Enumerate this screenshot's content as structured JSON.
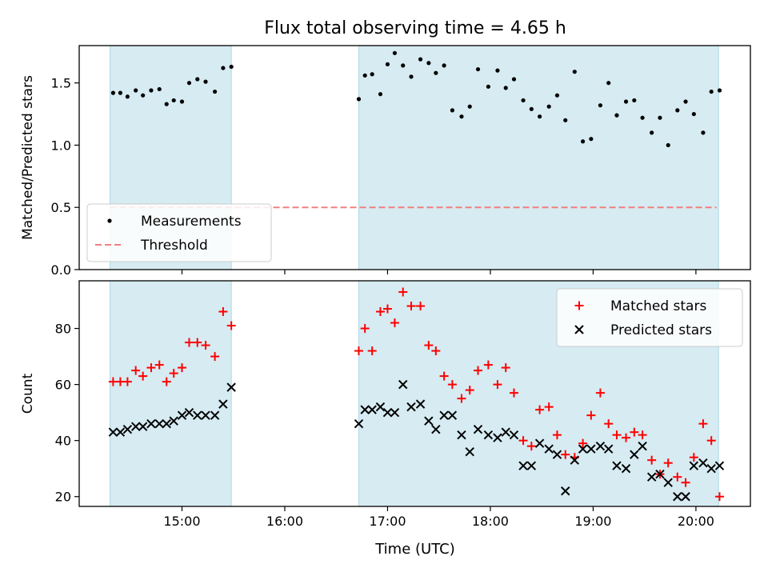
{
  "chart_data": {
    "title": "Flux total observing time = 4.65 h",
    "x_unit": "hours (UTC)",
    "xlim": [
      14.0,
      20.53
    ],
    "x_ticks": [
      {
        "value": 15,
        "label": "15:00"
      },
      {
        "value": 16,
        "label": "16:00"
      },
      {
        "value": 17,
        "label": "17:00"
      },
      {
        "value": 18,
        "label": "18:00"
      },
      {
        "value": 19,
        "label": "19:00"
      },
      {
        "value": 20,
        "label": "20:00"
      }
    ],
    "xlabel": "Time (UTC)",
    "shaded_intervals": [
      [
        14.3,
        15.48
      ],
      [
        16.72,
        20.22
      ]
    ],
    "shade_color": "#add8e6",
    "panels": [
      {
        "type": "scatter",
        "ylabel": "Matched/Predicted stars",
        "ylim": [
          0.0,
          1.8
        ],
        "y_ticks": [
          0.0,
          0.5,
          1.0,
          1.5
        ],
        "grid": false,
        "legend_position": "lower-left",
        "series": [
          {
            "name": "Measurements",
            "marker": "dot",
            "color": "#000000",
            "x": [
              14.33,
              14.4,
              14.47,
              14.55,
              14.62,
              14.7,
              14.78,
              14.85,
              14.92,
              15.0,
              15.07,
              15.15,
              15.23,
              15.32,
              15.4,
              15.48,
              16.72,
              16.78,
              16.85,
              16.93,
              17.0,
              17.07,
              17.15,
              17.23,
              17.32,
              17.4,
              17.47,
              17.55,
              17.63,
              17.72,
              17.8,
              17.88,
              17.98,
              18.07,
              18.15,
              18.23,
              18.32,
              18.4,
              18.48,
              18.57,
              18.65,
              18.73,
              18.82,
              18.9,
              18.98,
              19.07,
              19.15,
              19.23,
              19.32,
              19.4,
              19.48,
              19.57,
              19.65,
              19.73,
              19.82,
              19.9,
              19.98,
              20.07,
              20.15,
              20.23
            ],
            "y": [
              1.42,
              1.42,
              1.39,
              1.44,
              1.4,
              1.44,
              1.45,
              1.33,
              1.36,
              1.35,
              1.5,
              1.53,
              1.51,
              1.43,
              1.62,
              1.63,
              1.37,
              1.56,
              1.57,
              1.41,
              1.65,
              1.74,
              1.64,
              1.55,
              1.69,
              1.66,
              1.58,
              1.64,
              1.28,
              1.23,
              1.31,
              1.61,
              1.47,
              1.6,
              1.46,
              1.53,
              1.36,
              1.29,
              1.23,
              1.31,
              1.4,
              1.2,
              1.59,
              1.03,
              1.05,
              1.32,
              1.5,
              1.24,
              1.35,
              1.36,
              1.22,
              1.1,
              1.22,
              1.0,
              1.28,
              1.35,
              1.25,
              1.1,
              1.43,
              1.44
            ]
          },
          {
            "name": "Threshold",
            "line": "dashed",
            "color": "#f08080",
            "x": [
              14.3,
              20.2
            ],
            "y": [
              0.5,
              0.5
            ]
          }
        ]
      },
      {
        "type": "scatter",
        "ylabel": "Count",
        "ylim": [
          16.5,
          97.0
        ],
        "y_ticks": [
          20,
          40,
          60,
          80
        ],
        "grid": false,
        "legend_position": "upper-right",
        "series": [
          {
            "name": "Matched stars",
            "marker": "plus",
            "color": "#ff0000",
            "x": [
              14.33,
              14.4,
              14.47,
              14.55,
              14.62,
              14.7,
              14.78,
              14.85,
              14.92,
              15.0,
              15.07,
              15.15,
              15.23,
              15.32,
              15.4,
              15.48,
              16.72,
              16.78,
              16.85,
              16.93,
              17.0,
              17.07,
              17.15,
              17.23,
              17.32,
              17.4,
              17.47,
              17.55,
              17.63,
              17.72,
              17.8,
              17.88,
              17.98,
              18.07,
              18.15,
              18.23,
              18.32,
              18.4,
              18.48,
              18.57,
              18.65,
              18.73,
              18.82,
              18.9,
              18.98,
              19.07,
              19.15,
              19.23,
              19.32,
              19.4,
              19.48,
              19.57,
              19.65,
              19.73,
              19.82,
              19.9,
              19.98,
              20.07,
              20.15,
              20.23
            ],
            "y": [
              61,
              61,
              61,
              65,
              63,
              66,
              67,
              61,
              64,
              66,
              75,
              75,
              74,
              70,
              86,
              81,
              72,
              80,
              72,
              86,
              87,
              82,
              93,
              88,
              88,
              74,
              72,
              63,
              60,
              55,
              58,
              65,
              67,
              60,
              66,
              57,
              40,
              38,
              51,
              52,
              42,
              35,
              34,
              39,
              49,
              57,
              46,
              42,
              41,
              43,
              42,
              33,
              28,
              32,
              27,
              25,
              34,
              46,
              40,
              20
            ],
            "_x_note": "ignored"
          },
          {
            "name": "Predicted stars",
            "marker": "x",
            "color": "#000000",
            "x": [
              14.33,
              14.4,
              14.47,
              14.55,
              14.62,
              14.7,
              14.78,
              14.85,
              14.92,
              15.0,
              15.07,
              15.15,
              15.23,
              15.32,
              15.4,
              15.48,
              16.72,
              16.78,
              16.85,
              16.93,
              17.0,
              17.07,
              17.15,
              17.23,
              17.32,
              17.4,
              17.47,
              17.55,
              17.63,
              17.72,
              17.8,
              17.88,
              17.98,
              18.07,
              18.15,
              18.23,
              18.32,
              18.4,
              18.48,
              18.57,
              18.65,
              18.73,
              18.82,
              18.9,
              18.98,
              19.07,
              19.15,
              19.23,
              19.32,
              19.4,
              19.48,
              19.57,
              19.65,
              19.73,
              19.82,
              19.9,
              19.98,
              20.07,
              20.15,
              20.23
            ],
            "y": [
              43,
              43,
              44,
              45,
              45,
              46,
              46,
              46,
              47,
              49,
              50,
              49,
              49,
              49,
              53,
              59,
              46,
              51,
              51,
              52,
              50,
              50,
              60,
              52,
              53,
              47,
              44,
              49,
              49,
              42,
              36,
              44,
              42,
              41,
              43,
              42,
              31,
              31,
              39,
              37,
              35,
              22,
              33,
              37,
              37,
              38,
              37,
              31,
              30,
              35,
              38,
              27,
              28,
              25,
              20,
              20,
              31,
              32,
              30,
              31
            ]
          }
        ]
      }
    ]
  }
}
